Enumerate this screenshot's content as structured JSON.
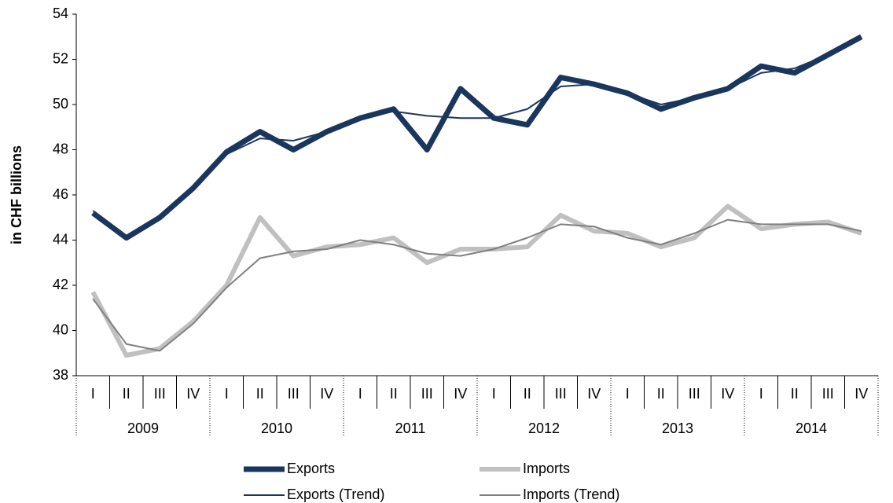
{
  "chart_data": {
    "type": "line",
    "y_label": "in CHF billions",
    "categories": [
      "I",
      "II",
      "III",
      "IV",
      "I",
      "II",
      "III",
      "IV",
      "I",
      "II",
      "III",
      "IV",
      "I",
      "II",
      "III",
      "IV",
      "I",
      "II",
      "III",
      "IV",
      "I",
      "II",
      "III",
      "IV"
    ],
    "groups": [
      "2009",
      "2010",
      "2011",
      "2012",
      "2013",
      "2014"
    ],
    "ylim": [
      38,
      54
    ],
    "yticks": [
      38,
      40,
      42,
      44,
      46,
      48,
      50,
      52,
      54
    ],
    "series": [
      {
        "name": "Exports",
        "color": "#1b365d",
        "values": [
          45.2,
          44.1,
          45.0,
          46.3,
          47.9,
          48.8,
          48.0,
          48.8,
          49.4,
          49.8,
          48.0,
          50.7,
          49.4,
          49.1,
          51.2,
          50.9,
          50.5,
          49.8,
          50.3,
          50.7,
          51.7,
          51.4,
          52.2,
          53.0
        ]
      },
      {
        "name": "Imports",
        "color": "#c0c0c0",
        "values": [
          41.7,
          38.9,
          39.2,
          40.4,
          42.0,
          45.0,
          43.3,
          43.7,
          43.8,
          44.1,
          43.0,
          43.6,
          43.6,
          43.7,
          45.1,
          44.4,
          44.3,
          43.7,
          44.1,
          45.5,
          44.5,
          44.7,
          44.8,
          44.3
        ]
      },
      {
        "name": "Exports (Trend)",
        "color": "#1b365d",
        "values": [
          45.3,
          44.1,
          45.0,
          46.3,
          47.8,
          48.5,
          48.4,
          48.8,
          49.4,
          49.7,
          49.5,
          49.4,
          49.4,
          49.8,
          50.8,
          50.9,
          50.5,
          50.0,
          50.3,
          50.7,
          51.4,
          51.6,
          52.2,
          53.0
        ]
      },
      {
        "name": "Imports (Trend)",
        "color": "#808080",
        "values": [
          41.4,
          39.4,
          39.1,
          40.3,
          41.9,
          43.2,
          43.5,
          43.6,
          44.0,
          43.8,
          43.4,
          43.3,
          43.6,
          44.1,
          44.7,
          44.6,
          44.1,
          43.8,
          44.3,
          44.9,
          44.7,
          44.7,
          44.7,
          44.4
        ]
      }
    ]
  }
}
